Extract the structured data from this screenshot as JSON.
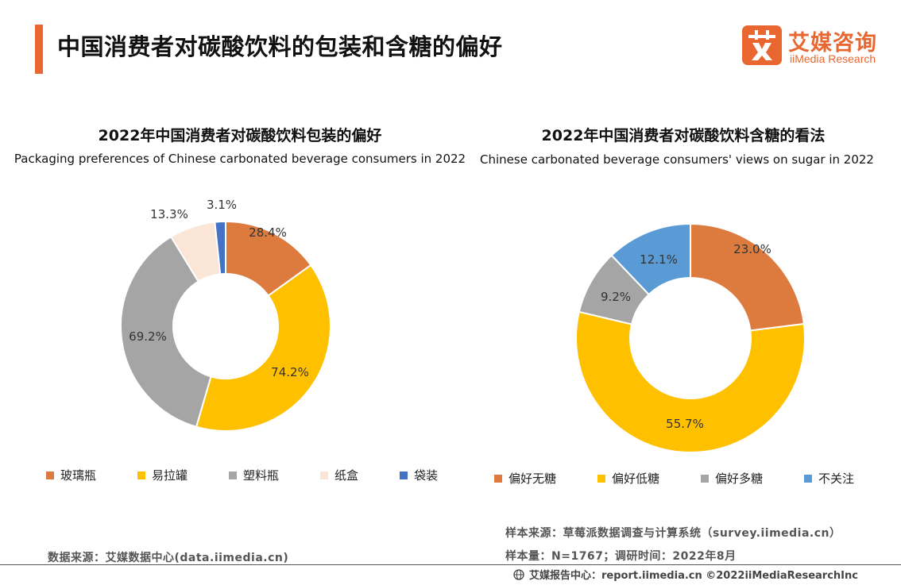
{
  "header": {
    "title": "中国消费者对碳酸饮料的包装和含糖的偏好",
    "accent_color": "#e8662f",
    "logo_cn": "艾媒咨询",
    "logo_en": "iiMedia Research",
    "logo_icon": "ai-letter-icon"
  },
  "chart_data": [
    {
      "type": "donut",
      "title": "2022年中国消费者对碳酸饮料包装的偏好",
      "subtitle": "Packaging preferences of Chinese carbonated beverage consumers in 2022",
      "categories": [
        "玻璃瓶",
        "易拉罐",
        "塑料瓶",
        "纸盒",
        "袋装"
      ],
      "values": [
        28.4,
        74.2,
        69.2,
        13.3,
        3.1
      ],
      "labels": [
        "28.4%",
        "74.2%",
        "69.2%",
        "13.3%",
        "3.1%"
      ],
      "colors": [
        "#dd7b3e",
        "#ffc000",
        "#a5a5a5",
        "#fbe5d6",
        "#4472c4"
      ],
      "legend_position": "bottom"
    },
    {
      "type": "donut",
      "title": "2022年中国消费者对碳酸饮料含糖的看法",
      "subtitle": "Chinese carbonated beverage consumers' views on sugar in 2022",
      "categories": [
        "偏好无糖",
        "偏好低糖",
        "偏好多糖",
        "不关注"
      ],
      "values": [
        23.0,
        55.7,
        9.2,
        12.1
      ],
      "labels": [
        "23.0%",
        "55.7%",
        "9.2%",
        "12.1%"
      ],
      "colors": [
        "#dd7b3e",
        "#ffc000",
        "#a5a5a5",
        "#5b9bd5"
      ],
      "legend_position": "bottom"
    }
  ],
  "notes": {
    "sample_source": "样本来源：草莓派数据调查与计算系统（survey.iimedia.cn）",
    "sample_size": "样本量：N=1767；调研时间：2022年8月",
    "data_source": "数据来源：艾媒数据中心(data.iimedia.cn)"
  },
  "footer": {
    "icon": "globe-icon",
    "text": "艾媒报告中心：report.iimedia.cn ©2022iiMediaResearchInc"
  }
}
